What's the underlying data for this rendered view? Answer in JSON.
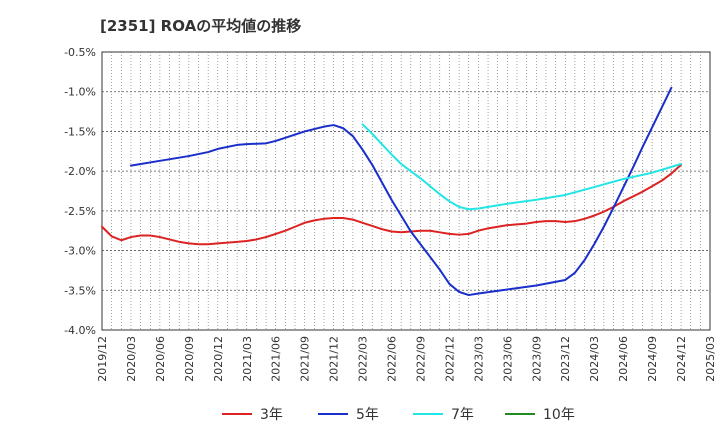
{
  "title": "[2351]  ROAの平均値の推移",
  "chart_data": {
    "type": "line",
    "title": "[2351]  ROAの平均値の推移",
    "xlabel": "",
    "ylabel": "",
    "ylim": [
      -4.0,
      -0.5
    ],
    "yticks": [
      "-0.5%",
      "-1.0%",
      "-1.5%",
      "-2.0%",
      "-2.5%",
      "-3.0%",
      "-3.5%",
      "-4.0%"
    ],
    "ytick_values": [
      -0.5,
      -1.0,
      -1.5,
      -2.0,
      -2.5,
      -3.0,
      -3.5,
      -4.0
    ],
    "xticks": [
      "2019/12",
      "2020/03",
      "2020/06",
      "2020/09",
      "2020/12",
      "2021/03",
      "2021/06",
      "2021/09",
      "2021/12",
      "2022/03",
      "2022/06",
      "2022/09",
      "2022/12",
      "2023/03",
      "2023/06",
      "2023/09",
      "2023/12",
      "2024/03",
      "2024/06",
      "2024/09",
      "2024/12",
      "2025/03"
    ],
    "x_months_start": "2019/12",
    "grid": true,
    "legend_position": "bottom",
    "series": [
      {
        "name": "3年",
        "color": "#dd2222",
        "points": [
          [
            "2019/12",
            -2.7
          ],
          [
            "2020/01",
            -2.82
          ],
          [
            "2020/02",
            -2.87
          ],
          [
            "2020/03",
            -2.83
          ],
          [
            "2020/04",
            -2.81
          ],
          [
            "2020/05",
            -2.81
          ],
          [
            "2020/06",
            -2.83
          ],
          [
            "2020/07",
            -2.86
          ],
          [
            "2020/08",
            -2.89
          ],
          [
            "2020/09",
            -2.91
          ],
          [
            "2020/10",
            -2.92
          ],
          [
            "2020/11",
            -2.92
          ],
          [
            "2020/12",
            -2.91
          ],
          [
            "2021/01",
            -2.9
          ],
          [
            "2021/02",
            -2.89
          ],
          [
            "2021/03",
            -2.88
          ],
          [
            "2021/04",
            -2.86
          ],
          [
            "2021/05",
            -2.83
          ],
          [
            "2021/06",
            -2.79
          ],
          [
            "2021/07",
            -2.75
          ],
          [
            "2021/08",
            -2.7
          ],
          [
            "2021/09",
            -2.65
          ],
          [
            "2021/10",
            -2.62
          ],
          [
            "2021/11",
            -2.6
          ],
          [
            "2021/12",
            -2.59
          ],
          [
            "2022/01",
            -2.59
          ],
          [
            "2022/02",
            -2.61
          ],
          [
            "2022/03",
            -2.65
          ],
          [
            "2022/04",
            -2.69
          ],
          [
            "2022/05",
            -2.73
          ],
          [
            "2022/06",
            -2.76
          ],
          [
            "2022/07",
            -2.77
          ],
          [
            "2022/08",
            -2.76
          ],
          [
            "2022/09",
            -2.75
          ],
          [
            "2022/10",
            -2.75
          ],
          [
            "2022/11",
            -2.77
          ],
          [
            "2022/12",
            -2.79
          ],
          [
            "2023/01",
            -2.8
          ],
          [
            "2023/02",
            -2.79
          ],
          [
            "2023/03",
            -2.75
          ],
          [
            "2023/04",
            -2.72
          ],
          [
            "2023/05",
            -2.7
          ],
          [
            "2023/06",
            -2.68
          ],
          [
            "2023/07",
            -2.67
          ],
          [
            "2023/08",
            -2.66
          ],
          [
            "2023/09",
            -2.64
          ],
          [
            "2023/10",
            -2.63
          ],
          [
            "2023/11",
            -2.63
          ],
          [
            "2023/12",
            -2.64
          ],
          [
            "2024/01",
            -2.63
          ],
          [
            "2024/02",
            -2.6
          ],
          [
            "2024/03",
            -2.56
          ],
          [
            "2024/04",
            -2.51
          ],
          [
            "2024/05",
            -2.45
          ],
          [
            "2024/06",
            -2.38
          ],
          [
            "2024/07",
            -2.32
          ],
          [
            "2024/08",
            -2.26
          ],
          [
            "2024/09",
            -2.19
          ],
          [
            "2024/10",
            -2.12
          ],
          [
            "2024/11",
            -2.03
          ],
          [
            "2024/12",
            -1.92
          ]
        ]
      },
      {
        "name": "5年",
        "color": "#1a2ecc",
        "points": [
          [
            "2020/03",
            -1.93
          ],
          [
            "2020/06",
            -1.87
          ],
          [
            "2020/09",
            -1.81
          ],
          [
            "2020/11",
            -1.76
          ],
          [
            "2020/12",
            -1.72
          ],
          [
            "2021/02",
            -1.67
          ],
          [
            "2021/03",
            -1.66
          ],
          [
            "2021/05",
            -1.65
          ],
          [
            "2021/06",
            -1.62
          ],
          [
            "2021/09",
            -1.5
          ],
          [
            "2021/11",
            -1.44
          ],
          [
            "2021/12",
            -1.42
          ],
          [
            "2022/01",
            -1.46
          ],
          [
            "2022/02",
            -1.56
          ],
          [
            "2022/03",
            -1.73
          ],
          [
            "2022/04",
            -1.92
          ],
          [
            "2022/05",
            -2.14
          ],
          [
            "2022/06",
            -2.36
          ],
          [
            "2022/07",
            -2.56
          ],
          [
            "2022/08",
            -2.76
          ],
          [
            "2022/09",
            -2.92
          ],
          [
            "2022/10",
            -3.08
          ],
          [
            "2022/11",
            -3.24
          ],
          [
            "2022/12",
            -3.42
          ],
          [
            "2023/01",
            -3.52
          ],
          [
            "2023/02",
            -3.56
          ],
          [
            "2023/03",
            -3.54
          ],
          [
            "2023/06",
            -3.49
          ],
          [
            "2023/09",
            -3.44
          ],
          [
            "2023/12",
            -3.37
          ],
          [
            "2024/01",
            -3.28
          ],
          [
            "2024/02",
            -3.12
          ],
          [
            "2024/03",
            -2.92
          ],
          [
            "2024/04",
            -2.7
          ],
          [
            "2024/05",
            -2.46
          ],
          [
            "2024/06",
            -2.21
          ],
          [
            "2024/07",
            -1.96
          ],
          [
            "2024/08",
            -1.7
          ],
          [
            "2024/09",
            -1.45
          ],
          [
            "2024/10",
            -1.2
          ],
          [
            "2024/11",
            -0.95
          ]
        ]
      },
      {
        "name": "7年",
        "color": "#22e5e5",
        "points": [
          [
            "2022/03",
            -1.41
          ],
          [
            "2022/04",
            -1.53
          ],
          [
            "2022/05",
            -1.66
          ],
          [
            "2022/06",
            -1.79
          ],
          [
            "2022/07",
            -1.91
          ],
          [
            "2022/08",
            -2.0
          ],
          [
            "2022/09",
            -2.09
          ],
          [
            "2022/10",
            -2.19
          ],
          [
            "2022/11",
            -2.29
          ],
          [
            "2022/12",
            -2.38
          ],
          [
            "2023/01",
            -2.45
          ],
          [
            "2023/02",
            -2.48
          ],
          [
            "2023/03",
            -2.47
          ],
          [
            "2023/06",
            -2.41
          ],
          [
            "2023/09",
            -2.36
          ],
          [
            "2023/12",
            -2.3
          ],
          [
            "2024/03",
            -2.2
          ],
          [
            "2024/06",
            -2.1
          ],
          [
            "2024/09",
            -2.02
          ],
          [
            "2024/12",
            -1.91
          ]
        ]
      },
      {
        "name": "10年",
        "color": "#228b22",
        "points": []
      }
    ]
  }
}
